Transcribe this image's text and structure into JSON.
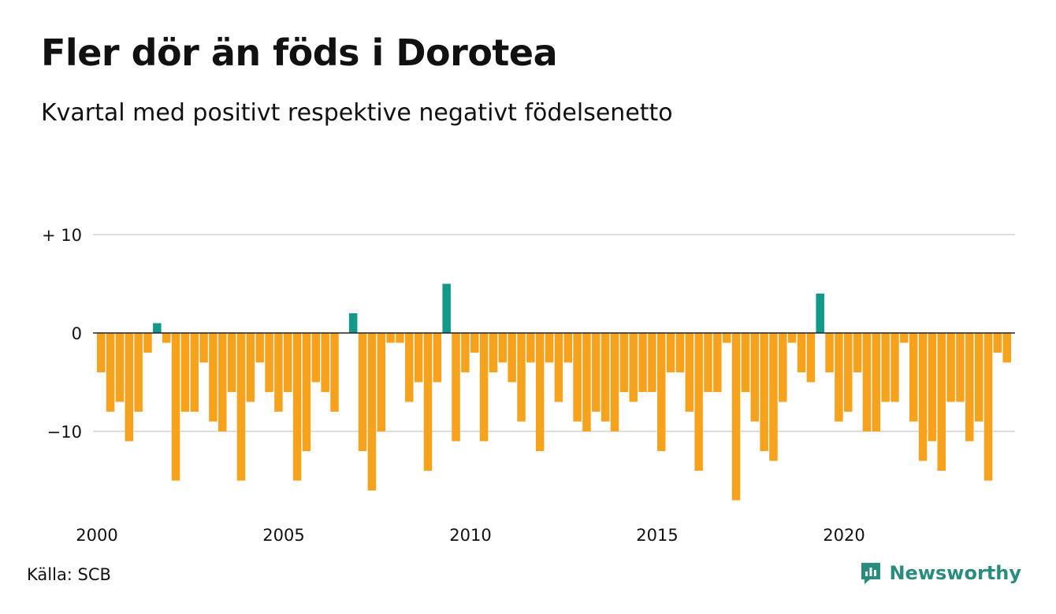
{
  "header": {
    "title": "Fler dör än föds i Dorotea",
    "subtitle": "Kvartal med positivt respektive negativt födelsenetto"
  },
  "footer": {
    "source": "Källa: SCB",
    "brand": "Newsworthy",
    "brand_icon": "newsworthy-logo-icon"
  },
  "colors": {
    "positive": "#13998a",
    "negative": "#f7a21c",
    "gridline": "#dddddd",
    "zeroline": "#222222",
    "brand": "#2a8c7e"
  },
  "chart_data": {
    "type": "bar",
    "title": "Fler dör än föds i Dorotea",
    "subtitle": "Kvartal med positivt respektive negativt födelsenetto",
    "xlabel": "",
    "ylabel": "",
    "x_start": "2000 Q1",
    "x_end": "2024 Q2",
    "x_ticks": [
      {
        "value": 2000,
        "label": "2000"
      },
      {
        "value": 2005,
        "label": "2005"
      },
      {
        "value": 2010,
        "label": "2010"
      },
      {
        "value": 2015,
        "label": "2015"
      },
      {
        "value": 2020,
        "label": "2020"
      }
    ],
    "y_ticks": [
      {
        "value": 10,
        "label": "+ 10"
      },
      {
        "value": 0,
        "label": "0"
      },
      {
        "value": -10,
        "label": "−10"
      }
    ],
    "ylim": [
      -18,
      10
    ],
    "grid": true,
    "values": [
      -4,
      -8,
      -7,
      -11,
      -8,
      -2,
      1,
      -1,
      -15,
      -8,
      -8,
      -3,
      -9,
      -10,
      -6,
      -15,
      -7,
      -3,
      -6,
      -8,
      -6,
      -15,
      -12,
      -5,
      -6,
      -8,
      0,
      2,
      -12,
      -16,
      -10,
      -1,
      -1,
      -7,
      -5,
      -14,
      -5,
      5,
      -11,
      -4,
      -2,
      -11,
      -4,
      -3,
      -5,
      -9,
      -3,
      -12,
      -3,
      -7,
      -3,
      -9,
      -10,
      -8,
      -9,
      -10,
      -6,
      -7,
      -6,
      -6,
      -12,
      -4,
      -4,
      -8,
      -14,
      -6,
      -6,
      -1,
      -17,
      -6,
      -9,
      -12,
      -13,
      -7,
      -1,
      -4,
      -5,
      4,
      -4,
      -9,
      -8,
      -4,
      -10,
      -10,
      -7,
      -7,
      -1,
      -9,
      -13,
      -11,
      -14,
      -7,
      -7,
      -11,
      -9,
      -15,
      -2,
      -3
    ]
  }
}
